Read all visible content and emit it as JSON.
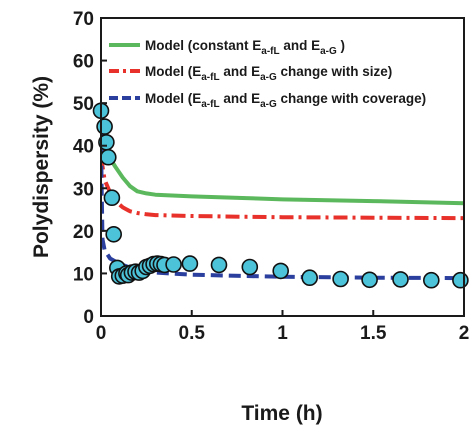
{
  "chart_data": {
    "type": "line",
    "xlabel": "Time (h)",
    "ylabel": "Polydispersity (%)",
    "xlim": [
      0,
      2
    ],
    "ylim": [
      0,
      70
    ],
    "x_ticks": [
      "0",
      "0.5",
      "1",
      "1.5",
      "2"
    ],
    "y_ticks": [
      "0",
      "10",
      "20",
      "30",
      "40",
      "50",
      "60",
      "70"
    ],
    "grid": false,
    "legend_position": "top-right",
    "series": [
      {
        "name": "Model (constant E_a-fL and E_a-G )",
        "legend_main": [
          "Model (constant E",
          " and E",
          " )"
        ],
        "legend_sub": [
          "a-fL",
          "a-G"
        ],
        "style": "solid",
        "color": "#5cb85c",
        "x": [
          0.0,
          0.005,
          0.02,
          0.05,
          0.08,
          0.12,
          0.16,
          0.2,
          0.25,
          0.3,
          0.5,
          0.8,
          1.0,
          1.5,
          2.0
        ],
        "y": [
          46,
          42,
          39,
          37,
          35,
          32.5,
          30.5,
          29.3,
          28.8,
          28.5,
          28.1,
          27.7,
          27.4,
          27.0,
          26.5
        ]
      },
      {
        "name": "Model (E_a-fL and E_a-G change with size)",
        "legend_main": [
          "Model (E",
          " and E",
          " change with size)"
        ],
        "legend_sub": [
          "a-fL",
          "a-G"
        ],
        "style": "dashdot",
        "color": "#e8312a",
        "x": [
          0.0,
          0.005,
          0.02,
          0.05,
          0.08,
          0.12,
          0.16,
          0.2,
          0.25,
          0.3,
          0.5,
          0.8,
          1.0,
          1.5,
          2.0
        ],
        "y": [
          44,
          36,
          32,
          29,
          27,
          25.5,
          24.6,
          24.2,
          23.9,
          23.7,
          23.5,
          23.3,
          23.2,
          23.1,
          23.0
        ]
      },
      {
        "name": "Model (E_a-fL and E_a-G change with coverage)",
        "legend_main": [
          "Model (E",
          " and E",
          " change with coverage)"
        ],
        "legend_sub": [
          "a-fL",
          "a-G"
        ],
        "style": "dashed",
        "color": "#2b3f9e",
        "x": [
          0.0,
          0.003,
          0.008,
          0.02,
          0.05,
          0.1,
          0.15,
          0.2,
          0.3,
          0.5,
          0.8,
          1.0,
          1.5,
          2.0
        ],
        "y": [
          48,
          32,
          18,
          15.5,
          13.5,
          12.3,
          11.5,
          10.8,
          10.2,
          9.7,
          9.4,
          9.2,
          9.0,
          8.9
        ]
      }
    ],
    "experimental_points": {
      "marker": "circle",
      "fill": "#4cc3d9",
      "x": [
        0.0,
        0.02,
        0.03,
        0.04,
        0.06,
        0.07,
        0.09,
        0.1,
        0.12,
        0.14,
        0.15,
        0.17,
        0.19,
        0.21,
        0.23,
        0.25,
        0.27,
        0.29,
        0.31,
        0.33,
        0.35,
        0.4,
        0.49,
        0.65,
        0.82,
        0.99,
        1.15,
        1.32,
        1.48,
        1.65,
        1.82,
        1.98
      ],
      "y": [
        48.2,
        44.5,
        40.8,
        37.3,
        27.8,
        19.2,
        11.3,
        9.3,
        9.5,
        10.0,
        9.6,
        10.2,
        10.4,
        10.2,
        10.6,
        11.5,
        11.8,
        12.2,
        12.3,
        12.2,
        12.0,
        12.1,
        12.3,
        12.0,
        11.5,
        10.6,
        9.0,
        8.7,
        8.5,
        8.6,
        8.4,
        8.4
      ]
    }
  }
}
